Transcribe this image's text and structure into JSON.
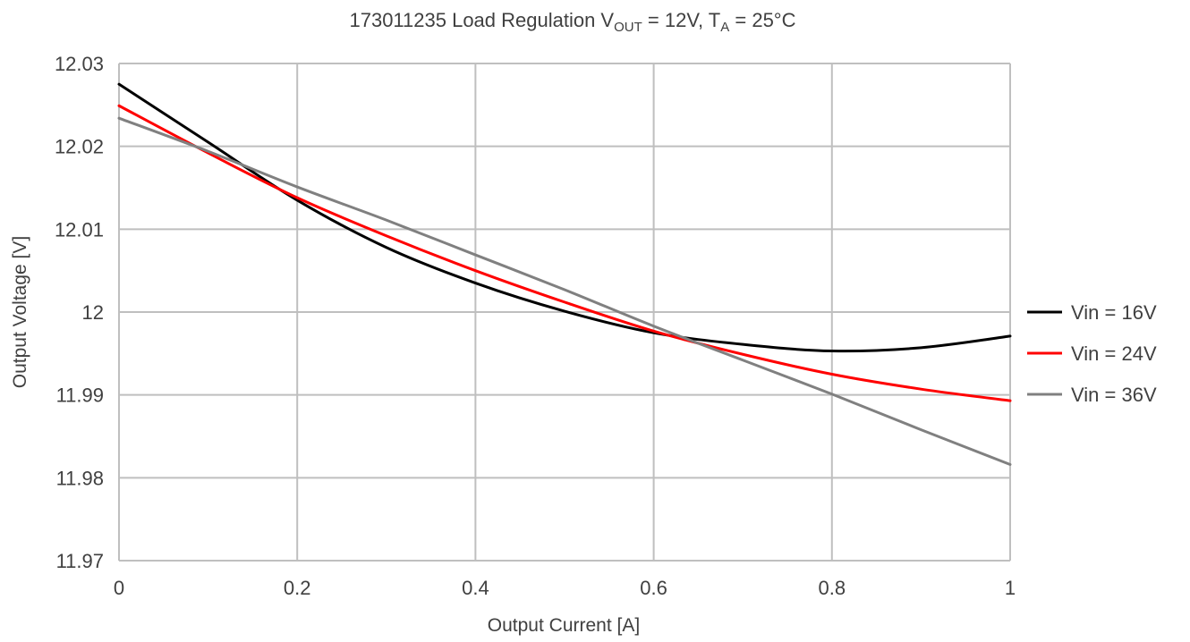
{
  "chart_data": {
    "type": "line",
    "title": {
      "prefix": "173011235  Load Regulation  V",
      "sub1": "OUT",
      "middle": " = 12V, T",
      "sub2": "A",
      "suffix": " = 25°C"
    },
    "xlabel": "Output Current [A]",
    "ylabel": "Output Voltage [V]",
    "xlim": [
      0,
      1
    ],
    "ylim": [
      11.97,
      12.03
    ],
    "x_ticks": [
      0,
      0.2,
      0.4,
      0.6,
      0.8,
      1
    ],
    "x_tick_labels": [
      "0",
      "0.2",
      "0.4",
      "0.6",
      "0.8",
      "1"
    ],
    "y_ticks": [
      11.97,
      11.98,
      11.99,
      12.0,
      12.01,
      12.02,
      12.03
    ],
    "y_tick_labels": [
      "11.97",
      "11.98",
      "11.99",
      "12",
      "12.01",
      "12.02",
      "12.03"
    ],
    "grid": true,
    "legend_position": "right",
    "series": [
      {
        "name": "Vin = 16V",
        "color": "#000000",
        "x": [
          0,
          0.1,
          0.2,
          0.3,
          0.4,
          0.5,
          0.6,
          0.7,
          0.8,
          0.9,
          1.0
        ],
        "y": [
          12.0275,
          12.0205,
          12.0135,
          12.0078,
          12.0035,
          12.0001,
          11.9975,
          11.9961,
          11.9953,
          11.9957,
          11.9971
        ]
      },
      {
        "name": "Vin = 24V",
        "color": "#ff0000",
        "x": [
          0,
          0.1,
          0.2,
          0.3,
          0.4,
          0.5,
          0.6,
          0.7,
          0.8,
          0.9,
          1.0
        ],
        "y": [
          12.0249,
          12.0192,
          12.0138,
          12.0092,
          12.005,
          12.0012,
          11.9977,
          11.9949,
          11.9925,
          11.9907,
          11.9893
        ]
      },
      {
        "name": "Vin = 36V",
        "color": "#808080",
        "x": [
          0,
          0.1,
          0.2,
          0.3,
          0.4,
          0.5,
          0.6,
          0.7,
          0.8,
          0.9,
          1.0
        ],
        "y": [
          12.0234,
          12.0194,
          12.0151,
          12.0111,
          12.0069,
          12.0027,
          11.9983,
          11.9942,
          11.9901,
          11.9858,
          11.9816
        ]
      }
    ]
  }
}
